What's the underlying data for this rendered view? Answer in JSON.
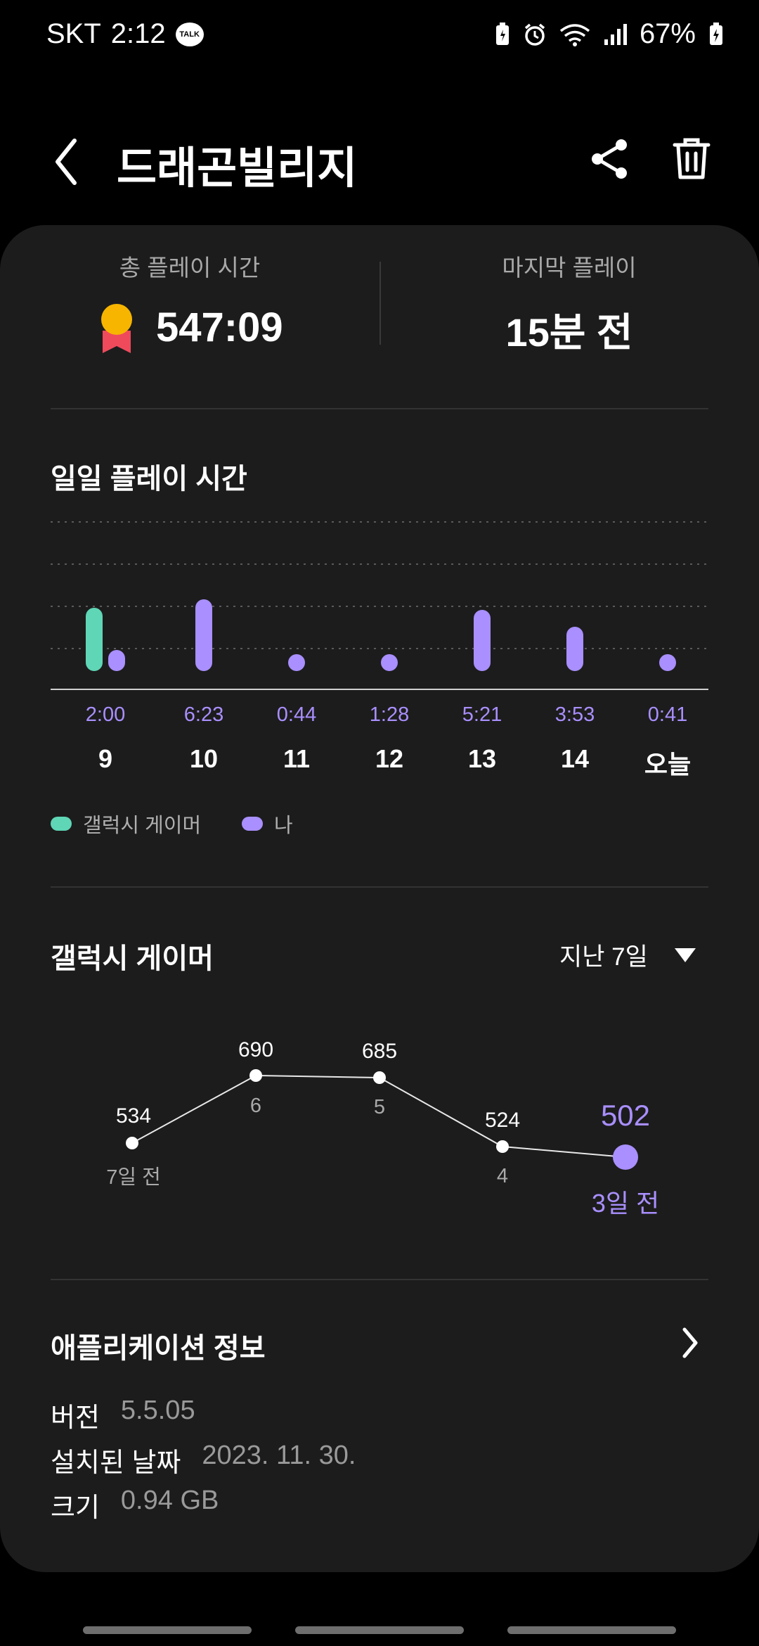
{
  "status": {
    "carrier": "SKT",
    "time": "2:12",
    "talk_badge": "TALK",
    "battery": "67%"
  },
  "header": {
    "title": "드래곤빌리지"
  },
  "summary": {
    "total_label": "총 플레이 시간",
    "total_value": "547:09",
    "last_label": "마지막 플레이",
    "last_value": "15분 전"
  },
  "daily": {
    "title": "일일 플레이 시간",
    "legend": [
      {
        "label": "갤럭시 게이머",
        "color": "#5fd6b6"
      },
      {
        "label": "나",
        "color": "#a98fff"
      }
    ],
    "days": [
      {
        "day": "9",
        "value": "2:00"
      },
      {
        "day": "10",
        "value": "6:23"
      },
      {
        "day": "11",
        "value": "0:44"
      },
      {
        "day": "12",
        "value": "1:28"
      },
      {
        "day": "13",
        "value": "5:21"
      },
      {
        "day": "14",
        "value": "3:53"
      },
      {
        "day": "오늘",
        "value": "0:41"
      }
    ]
  },
  "chart_data": {
    "type": "bar",
    "categories": [
      "9",
      "10",
      "11",
      "12",
      "13",
      "14",
      "오늘"
    ],
    "series": [
      {
        "name": "갤럭시 게이머",
        "values": [
          1.5,
          0,
          0,
          0,
          0,
          0,
          0
        ]
      },
      {
        "name": "나",
        "values": [
          0.5,
          1.7,
          0.25,
          0.3,
          1.45,
          1.05,
          0.25
        ]
      }
    ],
    "grid": true,
    "legend": "bottom-left"
  },
  "gamer": {
    "title": "갤럭시 게이머",
    "period": "지난 7일",
    "points": [
      {
        "value": "534",
        "label": "7일 전"
      },
      {
        "value": "690",
        "label": "6"
      },
      {
        "value": "685",
        "label": "5"
      },
      {
        "value": "524",
        "label": "4"
      },
      {
        "value": "502",
        "label": "3일 전"
      }
    ]
  },
  "app_info": {
    "title": "애플리케이션 정보",
    "version_key": "버전",
    "version_val": "5.5.05",
    "installed_key": "설치된 날짜",
    "installed_val": "2023. 11. 30.",
    "size_key": "크기",
    "size_val": "0.94 GB"
  },
  "colors": {
    "accent": "#a98fff",
    "gamer": "#5fd6b6",
    "medal": "#f7b500",
    "ribbon": "#ef4a5c"
  }
}
